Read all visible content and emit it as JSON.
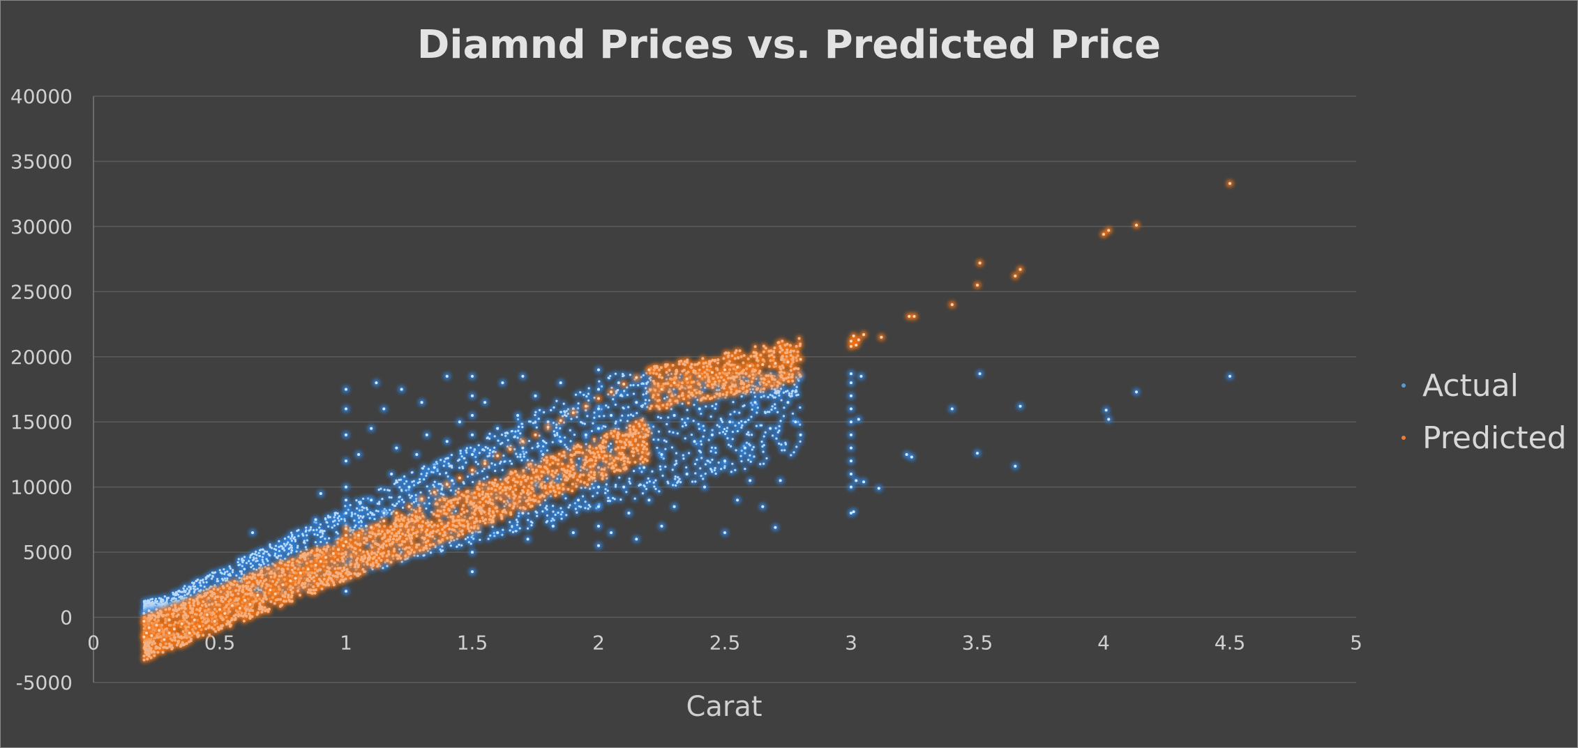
{
  "chart_data": {
    "type": "scatter",
    "title": "Diamnd Prices vs. Predicted Price",
    "xlabel": "Carat",
    "ylabel": "",
    "xlim": [
      0,
      5
    ],
    "ylim": [
      -5000,
      40000
    ],
    "x_ticks": [
      0,
      0.5,
      1,
      1.5,
      2,
      2.5,
      3,
      3.5,
      4,
      4.5,
      5
    ],
    "x_tick_labels": [
      "0",
      "0.5",
      "1",
      "1.5",
      "2",
      "2.5",
      "3",
      "3.5",
      "4",
      "4.5",
      "5"
    ],
    "y_ticks": [
      -5000,
      0,
      5000,
      10000,
      15000,
      20000,
      25000,
      30000,
      35000,
      40000
    ],
    "y_tick_labels": [
      "-5000",
      "0",
      "5000",
      "10000",
      "15000",
      "20000",
      "25000",
      "30000",
      "35000",
      "40000"
    ],
    "grid": "horizontal",
    "legend_position": "right",
    "series": [
      {
        "name": "Actual",
        "color": "#5b9bd5",
        "glow": "#2e86e6",
        "points": [
          [
            0.2,
            300
          ],
          [
            0.22,
            500
          ],
          [
            0.23,
            350
          ],
          [
            0.25,
            600
          ],
          [
            0.27,
            450
          ],
          [
            0.3,
            700
          ],
          [
            0.3,
            500
          ],
          [
            0.31,
            900
          ],
          [
            0.32,
            600
          ],
          [
            0.34,
            800
          ],
          [
            0.35,
            1000
          ],
          [
            0.38,
            1200
          ],
          [
            0.4,
            1100
          ],
          [
            0.4,
            900
          ],
          [
            0.42,
            1500
          ],
          [
            0.45,
            1400
          ],
          [
            0.5,
            1600
          ],
          [
            0.5,
            2200
          ],
          [
            0.52,
            1800
          ],
          [
            0.55,
            2000
          ],
          [
            0.57,
            2400
          ],
          [
            0.6,
            2200
          ],
          [
            0.62,
            3000
          ],
          [
            0.63,
            6500
          ],
          [
            0.65,
            2600
          ],
          [
            0.7,
            2800
          ],
          [
            0.7,
            3500
          ],
          [
            0.72,
            3200
          ],
          [
            0.75,
            3000
          ],
          [
            0.78,
            3400
          ],
          [
            0.8,
            3600
          ],
          [
            0.82,
            4500
          ],
          [
            0.85,
            3800
          ],
          [
            0.88,
            7500
          ],
          [
            0.9,
            4200
          ],
          [
            0.9,
            9500
          ],
          [
            0.92,
            5000
          ],
          [
            0.95,
            4800
          ],
          [
            0.97,
            6000
          ],
          [
            1.0,
            2000
          ],
          [
            1.0,
            3000
          ],
          [
            1.0,
            4000
          ],
          [
            1.0,
            5000
          ],
          [
            1.0,
            6000
          ],
          [
            1.0,
            7000
          ],
          [
            1.0,
            8000
          ],
          [
            1.0,
            9000
          ],
          [
            1.0,
            10000
          ],
          [
            1.0,
            12000
          ],
          [
            1.0,
            14000
          ],
          [
            1.0,
            16000
          ],
          [
            1.0,
            17500
          ],
          [
            1.02,
            4800
          ],
          [
            1.05,
            6000
          ],
          [
            1.05,
            12500
          ],
          [
            1.08,
            7000
          ],
          [
            1.1,
            5500
          ],
          [
            1.1,
            9000
          ],
          [
            1.1,
            14500
          ],
          [
            1.12,
            18000
          ],
          [
            1.15,
            8000
          ],
          [
            1.15,
            16000
          ],
          [
            1.18,
            11000
          ],
          [
            1.2,
            7500
          ],
          [
            1.2,
            13000
          ],
          [
            1.22,
            17500
          ],
          [
            1.25,
            6500
          ],
          [
            1.25,
            10000
          ],
          [
            1.28,
            12500
          ],
          [
            1.3,
            9000
          ],
          [
            1.3,
            16500
          ],
          [
            1.32,
            14000
          ],
          [
            1.35,
            11500
          ],
          [
            1.38,
            8500
          ],
          [
            1.4,
            13500
          ],
          [
            1.4,
            18500
          ],
          [
            1.42,
            10500
          ],
          [
            1.45,
            15000
          ],
          [
            1.5,
            3500
          ],
          [
            1.5,
            5000
          ],
          [
            1.5,
            6500
          ],
          [
            1.5,
            8000
          ],
          [
            1.5,
            9500
          ],
          [
            1.5,
            11000
          ],
          [
            1.5,
            12500
          ],
          [
            1.5,
            14000
          ],
          [
            1.5,
            15500
          ],
          [
            1.5,
            17000
          ],
          [
            1.5,
            18500
          ],
          [
            1.52,
            7000
          ],
          [
            1.55,
            12000
          ],
          [
            1.55,
            16500
          ],
          [
            1.58,
            9000
          ],
          [
            1.6,
            14500
          ],
          [
            1.6,
            6500
          ],
          [
            1.62,
            18000
          ],
          [
            1.65,
            11000
          ],
          [
            1.68,
            15500
          ],
          [
            1.7,
            8000
          ],
          [
            1.7,
            13000
          ],
          [
            1.7,
            18500
          ],
          [
            1.72,
            6000
          ],
          [
            1.75,
            10500
          ],
          [
            1.75,
            17000
          ],
          [
            1.78,
            12500
          ],
          [
            1.8,
            9500
          ],
          [
            1.8,
            15000
          ],
          [
            1.82,
            7000
          ],
          [
            1.85,
            13500
          ],
          [
            1.85,
            18000
          ],
          [
            1.88,
            11000
          ],
          [
            1.9,
            6500
          ],
          [
            1.9,
            16000
          ],
          [
            1.92,
            9000
          ],
          [
            1.95,
            14000
          ],
          [
            2.0,
            5500
          ],
          [
            2.0,
            7000
          ],
          [
            2.0,
            8500
          ],
          [
            2.0,
            10000
          ],
          [
            2.0,
            11500
          ],
          [
            2.0,
            13000
          ],
          [
            2.0,
            14500
          ],
          [
            2.0,
            16000
          ],
          [
            2.0,
            17500
          ],
          [
            2.0,
            19000
          ],
          [
            2.02,
            12000
          ],
          [
            2.05,
            15500
          ],
          [
            2.05,
            6500
          ],
          [
            2.08,
            18000
          ],
          [
            2.1,
            10000
          ],
          [
            2.1,
            13500
          ],
          [
            2.12,
            8000
          ],
          [
            2.15,
            16500
          ],
          [
            2.15,
            6000
          ],
          [
            2.18,
            11500
          ],
          [
            2.2,
            14500
          ],
          [
            2.2,
            9000
          ],
          [
            2.22,
            17500
          ],
          [
            2.25,
            12500
          ],
          [
            2.25,
            7000
          ],
          [
            2.3,
            15500
          ],
          [
            2.3,
            8500
          ],
          [
            2.32,
            18000
          ],
          [
            2.35,
            11000
          ],
          [
            2.38,
            13500
          ],
          [
            2.4,
            16000
          ],
          [
            2.42,
            10000
          ],
          [
            2.45,
            14000
          ],
          [
            2.48,
            17000
          ],
          [
            2.5,
            12000
          ],
          [
            2.5,
            6500
          ],
          [
            2.52,
            15000
          ],
          [
            2.55,
            9000
          ],
          [
            2.58,
            13000
          ],
          [
            2.6,
            10500
          ],
          [
            2.62,
            16500
          ],
          [
            2.65,
            8500
          ],
          [
            2.68,
            14500
          ],
          [
            2.7,
            6900
          ],
          [
            2.72,
            10500
          ],
          [
            2.75,
            16500
          ],
          [
            2.78,
            15000
          ],
          [
            2.8,
            18500
          ],
          [
            2.8,
            14000
          ],
          [
            3.0,
            8000
          ],
          [
            3.0,
            10000
          ],
          [
            3.0,
            11000
          ],
          [
            3.0,
            12000
          ],
          [
            3.0,
            13000
          ],
          [
            3.0,
            14000
          ],
          [
            3.0,
            15000
          ],
          [
            3.0,
            16000
          ],
          [
            3.0,
            17000
          ],
          [
            3.0,
            18000
          ],
          [
            3.0,
            18700
          ],
          [
            3.01,
            8100
          ],
          [
            3.02,
            10500
          ],
          [
            3.03,
            15200
          ],
          [
            3.04,
            18500
          ],
          [
            3.05,
            10400
          ],
          [
            3.11,
            9900
          ],
          [
            3.22,
            12500
          ],
          [
            3.24,
            12300
          ],
          [
            3.4,
            16000
          ],
          [
            3.5,
            12600
          ],
          [
            3.51,
            18700
          ],
          [
            3.65,
            11600
          ],
          [
            3.67,
            16200
          ],
          [
            4.01,
            15900
          ],
          [
            4.02,
            15200
          ],
          [
            4.13,
            17300
          ],
          [
            4.5,
            18500
          ]
        ]
      },
      {
        "name": "Predicted",
        "color": "#ed7d31",
        "glow": "#f07318",
        "points": [
          [
            0.2,
            -1500
          ],
          [
            0.2,
            -300
          ],
          [
            0.21,
            -1200
          ],
          [
            0.22,
            -800
          ],
          [
            0.23,
            -1400
          ],
          [
            0.25,
            -600
          ],
          [
            0.26,
            -1000
          ],
          [
            0.28,
            -1700
          ],
          [
            0.3,
            -200
          ],
          [
            0.3,
            -1200
          ],
          [
            0.32,
            -900
          ],
          [
            0.35,
            -500
          ],
          [
            0.38,
            -1200
          ],
          [
            0.4,
            -200
          ],
          [
            0.42,
            -700
          ],
          [
            0.45,
            200
          ],
          [
            0.48,
            -300
          ],
          [
            0.5,
            600
          ],
          [
            0.52,
            300
          ],
          [
            0.55,
            900
          ],
          [
            0.58,
            700
          ],
          [
            0.6,
            1300
          ],
          [
            0.62,
            1000
          ],
          [
            0.65,
            1700
          ],
          [
            0.7,
            2100
          ],
          [
            0.72,
            1800
          ],
          [
            0.75,
            2500
          ],
          [
            0.78,
            2800
          ],
          [
            0.8,
            3000
          ],
          [
            0.82,
            3400
          ],
          [
            0.85,
            3700
          ],
          [
            0.88,
            4000
          ],
          [
            0.9,
            4300
          ],
          [
            0.92,
            4600
          ],
          [
            0.95,
            4900
          ],
          [
            0.97,
            5200
          ],
          [
            0.99,
            5500
          ],
          [
            1.0,
            5800
          ],
          [
            1.0,
            6300
          ],
          [
            1.0,
            6800
          ],
          [
            1.05,
            6300
          ],
          [
            1.1,
            6900
          ],
          [
            1.15,
            7400
          ],
          [
            1.2,
            8000
          ],
          [
            1.25,
            8500
          ],
          [
            1.3,
            9100
          ],
          [
            1.35,
            9600
          ],
          [
            1.4,
            10200
          ],
          [
            1.45,
            10700
          ],
          [
            1.5,
            11300
          ],
          [
            1.55,
            11800
          ],
          [
            1.6,
            12400
          ],
          [
            1.65,
            12900
          ],
          [
            1.7,
            13500
          ],
          [
            1.75,
            14000
          ],
          [
            1.8,
            14600
          ],
          [
            1.85,
            15100
          ],
          [
            1.9,
            15700
          ],
          [
            1.95,
            16200
          ],
          [
            2.0,
            16800
          ],
          [
            2.05,
            17300
          ],
          [
            2.1,
            17900
          ],
          [
            2.15,
            18400
          ],
          [
            2.2,
            19000
          ],
          [
            2.25,
            17500
          ],
          [
            2.3,
            18000
          ],
          [
            2.35,
            18300
          ],
          [
            2.4,
            18500
          ],
          [
            2.45,
            18800
          ],
          [
            2.5,
            19000
          ],
          [
            2.55,
            19200
          ],
          [
            2.6,
            19300
          ],
          [
            2.65,
            19400
          ],
          [
            2.7,
            19500
          ],
          [
            2.75,
            19600
          ],
          [
            2.8,
            19800
          ],
          [
            3.0,
            20800
          ],
          [
            3.0,
            21200
          ],
          [
            3.01,
            21600
          ],
          [
            3.02,
            20900
          ],
          [
            3.03,
            21300
          ],
          [
            3.05,
            21700
          ],
          [
            3.12,
            21500
          ],
          [
            3.23,
            23100
          ],
          [
            3.25,
            23100
          ],
          [
            3.4,
            24000
          ],
          [
            3.5,
            25500
          ],
          [
            3.51,
            27200
          ],
          [
            3.65,
            26200
          ],
          [
            3.67,
            26700
          ],
          [
            4.0,
            29400
          ],
          [
            4.02,
            29700
          ],
          [
            4.13,
            30100
          ],
          [
            4.5,
            33300
          ]
        ],
        "band": {
          "description_free": true,
          "slope": 11300,
          "intercept": -6200
        }
      }
    ]
  }
}
